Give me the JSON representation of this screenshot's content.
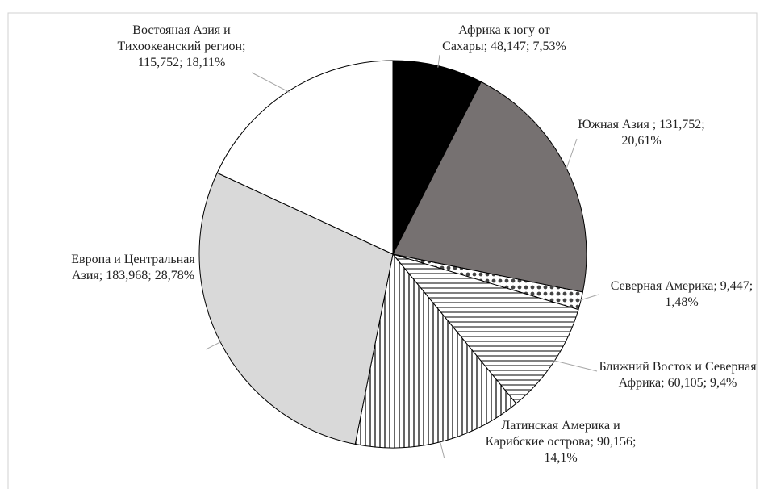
{
  "chart_data": {
    "type": "pie",
    "categories": [
      "Африка к югу от Сахары;",
      "Южная Азия ;",
      "Северная Америка;",
      "Ближний Восток и Северная Африка;",
      "Латинская Америка и Карибские острова;",
      "Европа и Центральная Азия;",
      "Востояная Азия и Тихоокеанский регион;"
    ],
    "values": [
      48.147,
      131.752,
      9.447,
      60.105,
      90.156,
      183.968,
      115.752
    ],
    "value_labels": [
      "48,147;",
      "131,752;",
      "9,447;",
      "60,105;",
      "90,156;",
      "183,968;",
      "115,752;"
    ],
    "percents": [
      7.53,
      20.61,
      1.48,
      9.4,
      14.1,
      28.78,
      18.11
    ],
    "percent_labels": [
      "7,53%",
      "20,61%",
      "1,48%",
      "9,4%",
      "14,1%",
      "28,78%",
      "18,11%"
    ],
    "colors": [
      "#000000",
      "#767171",
      "#ffffff",
      "#ffffff",
      "#ffffff",
      "#d9d9d9",
      "#ffffff"
    ],
    "patterns": [
      null,
      null,
      "dots",
      "hlines",
      "vlines",
      null,
      null
    ]
  }
}
